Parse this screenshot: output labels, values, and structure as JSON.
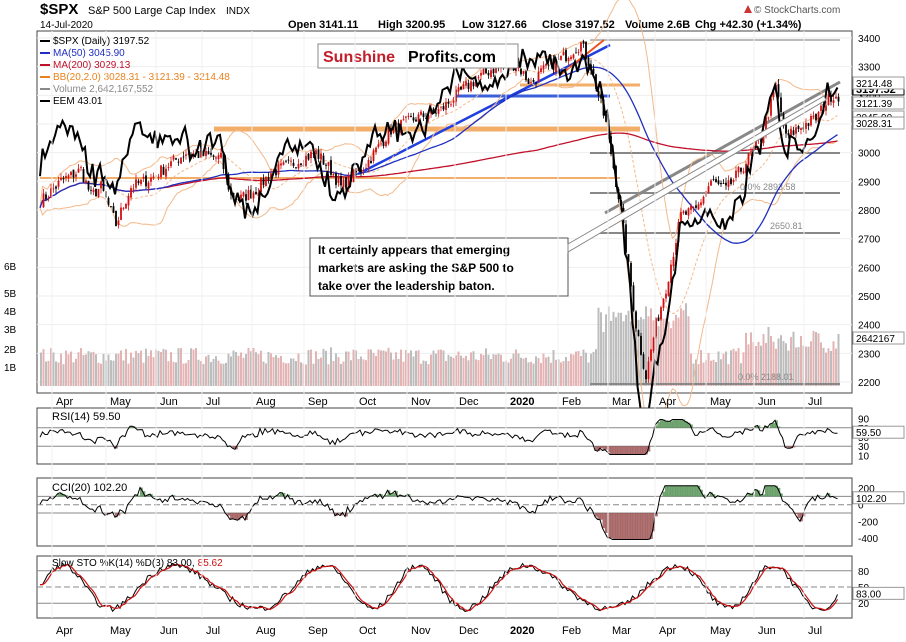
{
  "header": {
    "symbol": "$SPX",
    "name": "S&P 500 Large Cap Index",
    "exchange": "INDX",
    "date": "14-Jul-2020",
    "open": "Open 3141.11",
    "high": "High 3200.95",
    "low": "Low 3127.66",
    "close": "Close 3197.52",
    "volume": "Volume 2.6B",
    "change": "Chg +42.30 (+1.34%)",
    "source": "© StockCharts.com",
    "source_icon": "triangle-up-icon"
  },
  "watermark": {
    "brand_a": "Sunshine",
    "brand_b": "Profits.com"
  },
  "legend": [
    {
      "label": "$SPX (Daily) 3197.52",
      "color": "#000000"
    },
    {
      "label": "MA(50) 3045.90",
      "color": "#1f2fbf"
    },
    {
      "label": "MA(200) 3029.13",
      "color": "#c0102a"
    },
    {
      "label": "BB(20,2.0) 3028.31 - 3121.39 - 3214.48",
      "color": "#e8821e"
    },
    {
      "label": "Volume 2,642,167,552",
      "color": "#888888"
    },
    {
      "label": "EEM 43.01",
      "color": "#000000"
    }
  ],
  "annotation": {
    "line1": "It certainly appears that emerging",
    "line2": "markets are asking the S&P 500 to",
    "line3": "take over the leadership baton."
  },
  "colors": {
    "up": "#d01010",
    "down": "#000000",
    "ma50": "#1f2fbf",
    "ma200": "#c0102a",
    "bb": "#e8821e",
    "vol": "#c8c8c8",
    "fill_pos": "#4f8f4f",
    "fill_neg": "#9a4d4d"
  },
  "chart_data": [
    {
      "type": "candlestick",
      "title": "$SPX S&P 500 Large Cap Index",
      "price_ticks": [
        "3400",
        "3300",
        "3200",
        "3100",
        "3000",
        "2900",
        "2800",
        "2700",
        "2600",
        "2500",
        "2400",
        "2300",
        "2200"
      ],
      "ylim": [
        2150,
        3420
      ],
      "volume_ticks": [
        "6B",
        "5B",
        "4B",
        "3B",
        "2B",
        "1B"
      ],
      "fib_labels": [
        "0.0% 2893.58",
        "2650.81",
        "0.0% 2188.01"
      ],
      "price_labels": [
        {
          "text": "3197.52",
          "emph": true
        },
        {
          "text": "3121.39",
          "emph": false
        },
        {
          "text": "3045.90",
          "emph": false
        },
        {
          "text": "3028.31",
          "emph": false
        },
        {
          "text": "3214.48",
          "emph": false
        }
      ],
      "volume_label": "2642167",
      "months": [
        "Apr",
        "May",
        "Jun",
        "Jul",
        "Aug",
        "Sep",
        "Oct",
        "Nov",
        "Dec",
        "2020",
        "Feb",
        "Mar",
        "Apr",
        "May",
        "Jun",
        "Jul"
      ],
      "month_bold": [
        false,
        false,
        false,
        false,
        false,
        false,
        false,
        false,
        false,
        true,
        false,
        false,
        false,
        false,
        false,
        false
      ],
      "spx_anchors": [
        [
          0,
          2830
        ],
        [
          8,
          2900
        ],
        [
          16,
          2940
        ],
        [
          20,
          2850
        ],
        [
          24,
          2880
        ],
        [
          30,
          2750
        ],
        [
          36,
          2880
        ],
        [
          44,
          2910
        ],
        [
          50,
          2950
        ],
        [
          58,
          3000
        ],
        [
          66,
          2990
        ],
        [
          72,
          2980
        ],
        [
          76,
          2850
        ],
        [
          80,
          2840
        ],
        [
          86,
          2870
        ],
        [
          92,
          2930
        ],
        [
          100,
          2960
        ],
        [
          110,
          3000
        ],
        [
          116,
          2940
        ],
        [
          120,
          2880
        ],
        [
          130,
          2960
        ],
        [
          140,
          3080
        ],
        [
          150,
          3120
        ],
        [
          160,
          3150
        ],
        [
          170,
          3230
        ],
        [
          180,
          3290
        ],
        [
          190,
          3310
        ],
        [
          196,
          3240
        ],
        [
          200,
          3280
        ],
        [
          210,
          3340
        ],
        [
          216,
          3380
        ],
        [
          220,
          3300
        ],
        [
          226,
          3100
        ],
        [
          232,
          2800
        ],
        [
          238,
          2400
        ],
        [
          242,
          2220
        ],
        [
          246,
          2400
        ],
        [
          250,
          2530
        ],
        [
          256,
          2780
        ],
        [
          262,
          2800
        ],
        [
          268,
          2900
        ],
        [
          274,
          2870
        ],
        [
          280,
          2940
        ],
        [
          288,
          3050
        ],
        [
          294,
          3230
        ],
        [
          298,
          3050
        ],
        [
          302,
          3080
        ],
        [
          310,
          3120
        ],
        [
          316,
          3200
        ]
      ]
    },
    {
      "type": "line",
      "title": "RSI(14) 59.50",
      "ticks": [
        "90",
        "70",
        "50",
        "30",
        "10"
      ],
      "ylim": [
        0,
        100
      ],
      "value_label": "59.50"
    },
    {
      "type": "line",
      "title": "CCI(20) 102.20",
      "ticks": [
        "200",
        "0",
        "-200",
        "-400"
      ],
      "ylim": [
        -450,
        250
      ],
      "value_label": "102.20"
    },
    {
      "type": "line",
      "title": "Slow STO %K(14) %D(3) 83.00, 85.62",
      "title_a": "Slow STO %K(14) %D(3) 83.00,",
      "title_b": "85.62",
      "ticks": [
        "80",
        "50",
        "20"
      ],
      "ylim": [
        0,
        100
      ],
      "value_label": "83.00"
    }
  ]
}
